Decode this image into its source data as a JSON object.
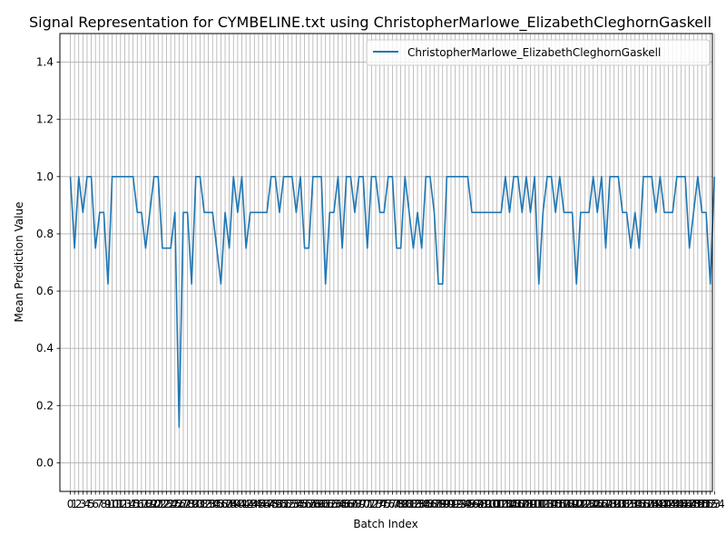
{
  "chart_data": {
    "type": "line",
    "title": "Signal Representation for CYMBELINE.txt using ChristopherMarlowe_ElizabethCleghornGaskell",
    "xlabel": "Batch Index",
    "ylabel": "Mean Prediction Value",
    "xlim": [
      -2.5,
      153.5
    ],
    "ylim": [
      -0.1,
      1.5
    ],
    "yticks": [
      0.0,
      0.2,
      0.4,
      0.6,
      0.8,
      1.0,
      1.2,
      1.4
    ],
    "ytick_labels": [
      "0.0",
      "0.2",
      "0.4",
      "0.6",
      "0.8",
      "1.0",
      "1.2",
      "1.4"
    ],
    "x_tick_step": 1,
    "grid": true,
    "legend_position": "top-right",
    "series": [
      {
        "name": "ChristopherMarlowe_ElizabethCleghornGaskell",
        "color": "#1f77b4",
        "values": [
          1.0,
          0.75,
          1.0,
          0.875,
          1.0,
          1.0,
          0.75,
          0.875,
          0.875,
          0.625,
          1.0,
          1.0,
          1.0,
          1.0,
          1.0,
          1.0,
          0.875,
          0.875,
          0.75,
          0.875,
          1.0,
          1.0,
          0.75,
          0.75,
          0.75,
          0.875,
          0.125,
          0.875,
          0.875,
          0.625,
          1.0,
          1.0,
          0.875,
          0.875,
          0.875,
          0.75,
          0.625,
          0.875,
          0.75,
          1.0,
          0.875,
          1.0,
          0.75,
          0.875,
          0.875,
          0.875,
          0.875,
          0.875,
          1.0,
          1.0,
          0.875,
          1.0,
          1.0,
          1.0,
          0.875,
          1.0,
          0.75,
          0.75,
          1.0,
          1.0,
          1.0,
          0.625,
          0.875,
          0.875,
          1.0,
          0.75,
          1.0,
          1.0,
          0.875,
          1.0,
          1.0,
          0.75,
          1.0,
          1.0,
          0.875,
          0.875,
          1.0,
          1.0,
          0.75,
          0.75,
          1.0,
          0.875,
          0.75,
          0.875,
          0.75,
          1.0,
          1.0,
          0.875,
          0.625,
          0.625,
          1.0,
          1.0,
          1.0,
          1.0,
          1.0,
          1.0,
          0.875,
          0.875,
          0.875,
          0.875,
          0.875,
          0.875,
          0.875,
          0.875,
          1.0,
          0.875,
          1.0,
          1.0,
          0.875,
          1.0,
          0.875,
          1.0,
          0.625,
          0.875,
          1.0,
          1.0,
          0.875,
          1.0,
          0.875,
          0.875,
          0.875,
          0.625,
          0.875,
          0.875,
          0.875,
          1.0,
          0.875,
          1.0,
          0.75,
          1.0,
          1.0,
          1.0,
          0.875,
          0.875,
          0.75,
          0.875,
          0.75,
          1.0,
          1.0,
          1.0,
          0.875,
          1.0,
          0.875,
          0.875,
          0.875,
          1.0,
          1.0,
          1.0,
          0.75,
          0.875,
          1.0,
          0.875,
          0.875,
          0.625,
          1.0
        ]
      }
    ]
  }
}
